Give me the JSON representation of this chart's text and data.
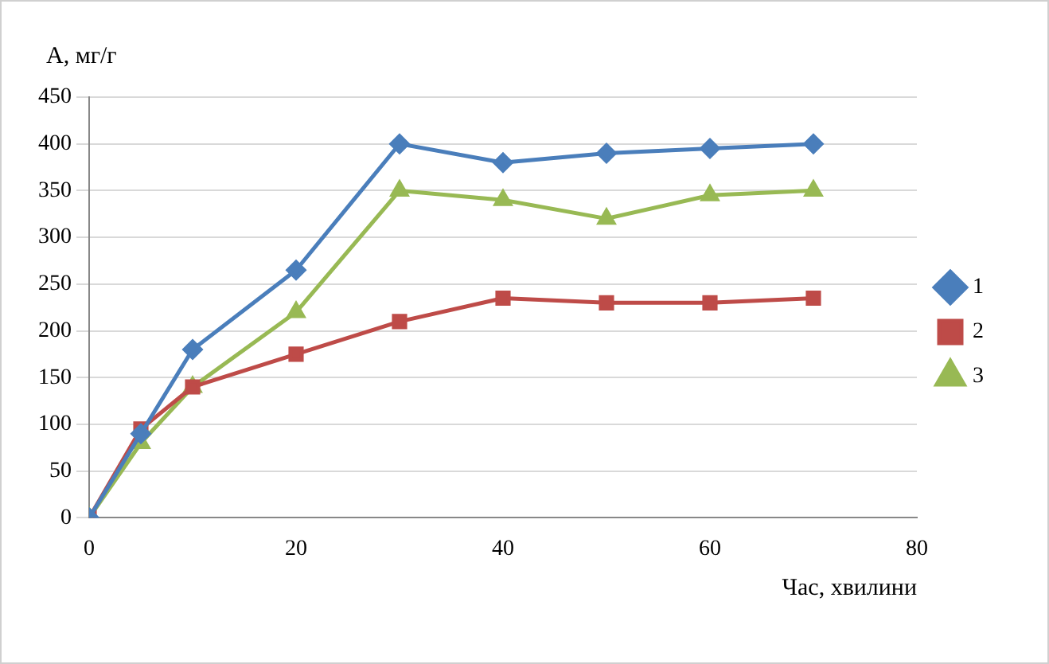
{
  "chart_data": {
    "type": "line",
    "xlabel": "Час, хвилини",
    "ylabel": "А, мг/г",
    "x": [
      0,
      5,
      10,
      20,
      30,
      40,
      50,
      60,
      70
    ],
    "series": [
      {
        "name": "1",
        "color": "#4a7ebb",
        "marker": "diamond",
        "values": [
          0,
          90,
          180,
          265,
          400,
          380,
          390,
          395,
          400
        ]
      },
      {
        "name": "2",
        "color": "#be4b48",
        "marker": "square",
        "values": [
          0,
          95,
          140,
          175,
          210,
          235,
          230,
          230,
          235
        ]
      },
      {
        "name": "3",
        "color": "#98b954",
        "marker": "triangle",
        "values": [
          0,
          80,
          140,
          220,
          350,
          340,
          320,
          345,
          350
        ]
      }
    ],
    "xlim": [
      0,
      80
    ],
    "xticks": [
      0,
      20,
      40,
      60,
      80
    ],
    "ylim": [
      0,
      450
    ],
    "yticks": [
      0,
      50,
      100,
      150,
      200,
      250,
      300,
      350,
      400,
      450
    ],
    "grid": "y",
    "legend": "right",
    "line_style": "solid"
  }
}
